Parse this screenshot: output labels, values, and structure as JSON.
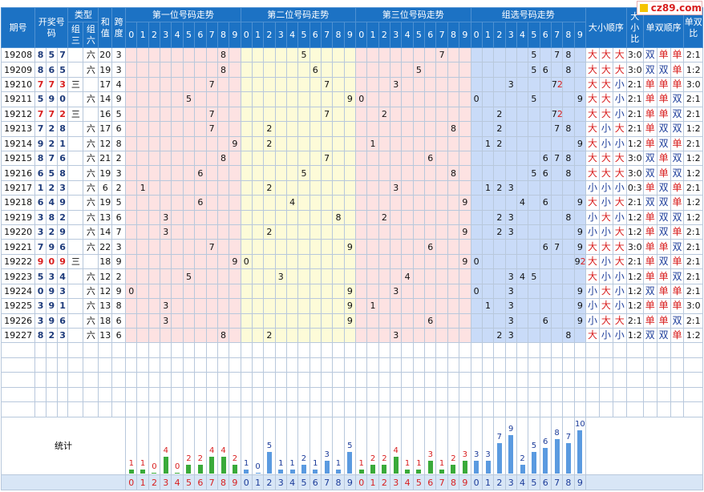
{
  "logo": "cz89.com",
  "header": {
    "qihao": "期号",
    "kaijiang": "开奖号码",
    "leixing": "类型",
    "zu3": "组三",
    "zu6": "组六",
    "hezhi": "和值",
    "kuadu": "跨度",
    "g1": "第一位号码走势",
    "g2": "第二位号码走势",
    "g3": "第三位号码走势",
    "g4": "组选号码走势",
    "daxiao": "大小顺序",
    "dxbi": "大小比",
    "danshuang": "单双顺序",
    "dsbi": "单双比",
    "digits": [
      "0",
      "1",
      "2",
      "3",
      "4",
      "5",
      "6",
      "7",
      "8",
      "9"
    ]
  },
  "rows": [
    {
      "q": "19208",
      "n": [
        "8",
        "5",
        "7"
      ],
      "red": false,
      "t3": "",
      "t6": "六",
      "hz": "20",
      "kd": "3",
      "dx": [
        "大",
        "大",
        "大"
      ],
      "dxb": "3:0",
      "ds": [
        "双",
        "单",
        "单"
      ],
      "dsb": "2:1"
    },
    {
      "q": "19209",
      "n": [
        "8",
        "6",
        "5"
      ],
      "red": false,
      "t3": "",
      "t6": "六",
      "hz": "19",
      "kd": "3",
      "dx": [
        "大",
        "大",
        "大"
      ],
      "dxb": "3:0",
      "ds": [
        "双",
        "双",
        "单"
      ],
      "dsb": "1:2"
    },
    {
      "q": "19210",
      "n": [
        "7",
        "7",
        "3"
      ],
      "red": true,
      "t3": "三",
      "t6": "",
      "hz": "17",
      "kd": "4",
      "dx": [
        "大",
        "大",
        "小"
      ],
      "dxb": "2:1",
      "ds": [
        "单",
        "单",
        "单"
      ],
      "dsb": "3:0"
    },
    {
      "q": "19211",
      "n": [
        "5",
        "9",
        "0"
      ],
      "red": false,
      "t3": "",
      "t6": "六",
      "hz": "14",
      "kd": "9",
      "dx": [
        "大",
        "大",
        "小"
      ],
      "dxb": "2:1",
      "ds": [
        "单",
        "单",
        "双"
      ],
      "dsb": "2:1"
    },
    {
      "q": "19212",
      "n": [
        "7",
        "7",
        "2"
      ],
      "red": true,
      "t3": "三",
      "t6": "",
      "hz": "16",
      "kd": "5",
      "dx": [
        "大",
        "大",
        "小"
      ],
      "dxb": "2:1",
      "ds": [
        "单",
        "单",
        "双"
      ],
      "dsb": "2:1"
    },
    {
      "q": "19213",
      "n": [
        "7",
        "2",
        "8"
      ],
      "red": false,
      "t3": "",
      "t6": "六",
      "hz": "17",
      "kd": "6",
      "dx": [
        "大",
        "小",
        "大"
      ],
      "dxb": "2:1",
      "ds": [
        "单",
        "双",
        "双"
      ],
      "dsb": "1:2"
    },
    {
      "q": "19214",
      "n": [
        "9",
        "2",
        "1"
      ],
      "red": false,
      "t3": "",
      "t6": "六",
      "hz": "12",
      "kd": "8",
      "dx": [
        "大",
        "小",
        "小"
      ],
      "dxb": "1:2",
      "ds": [
        "单",
        "双",
        "单"
      ],
      "dsb": "2:1"
    },
    {
      "q": "19215",
      "n": [
        "8",
        "7",
        "6"
      ],
      "red": false,
      "t3": "",
      "t6": "六",
      "hz": "21",
      "kd": "2",
      "dx": [
        "大",
        "大",
        "大"
      ],
      "dxb": "3:0",
      "ds": [
        "双",
        "单",
        "双"
      ],
      "dsb": "1:2"
    },
    {
      "q": "19216",
      "n": [
        "6",
        "5",
        "8"
      ],
      "red": false,
      "t3": "",
      "t6": "六",
      "hz": "19",
      "kd": "3",
      "dx": [
        "大",
        "大",
        "大"
      ],
      "dxb": "3:0",
      "ds": [
        "双",
        "单",
        "双"
      ],
      "dsb": "1:2"
    },
    {
      "q": "19217",
      "n": [
        "1",
        "2",
        "3"
      ],
      "red": false,
      "t3": "",
      "t6": "六",
      "hz": "6",
      "kd": "2",
      "dx": [
        "小",
        "小",
        "小"
      ],
      "dxb": "0:3",
      "ds": [
        "单",
        "双",
        "单"
      ],
      "dsb": "2:1"
    },
    {
      "q": "19218",
      "n": [
        "6",
        "4",
        "9"
      ],
      "red": false,
      "t3": "",
      "t6": "六",
      "hz": "19",
      "kd": "5",
      "dx": [
        "大",
        "小",
        "大"
      ],
      "dxb": "2:1",
      "ds": [
        "双",
        "双",
        "单"
      ],
      "dsb": "1:2"
    },
    {
      "q": "19219",
      "n": [
        "3",
        "8",
        "2"
      ],
      "red": false,
      "t3": "",
      "t6": "六",
      "hz": "13",
      "kd": "6",
      "dx": [
        "小",
        "大",
        "小"
      ],
      "dxb": "1:2",
      "ds": [
        "单",
        "双",
        "双"
      ],
      "dsb": "1:2"
    },
    {
      "q": "19220",
      "n": [
        "3",
        "2",
        "9"
      ],
      "red": false,
      "t3": "",
      "t6": "六",
      "hz": "14",
      "kd": "7",
      "dx": [
        "小",
        "小",
        "大"
      ],
      "dxb": "1:2",
      "ds": [
        "单",
        "双",
        "单"
      ],
      "dsb": "2:1"
    },
    {
      "q": "19221",
      "n": [
        "7",
        "9",
        "6"
      ],
      "red": false,
      "t3": "",
      "t6": "六",
      "hz": "22",
      "kd": "3",
      "dx": [
        "大",
        "大",
        "大"
      ],
      "dxb": "3:0",
      "ds": [
        "单",
        "单",
        "双"
      ],
      "dsb": "2:1"
    },
    {
      "q": "19222",
      "n": [
        "9",
        "0",
        "9"
      ],
      "red": true,
      "t3": "三",
      "t6": "",
      "hz": "18",
      "kd": "9",
      "dx": [
        "大",
        "小",
        "大"
      ],
      "dxb": "2:1",
      "ds": [
        "单",
        "双",
        "单"
      ],
      "dsb": "2:1"
    },
    {
      "q": "19223",
      "n": [
        "5",
        "3",
        "4"
      ],
      "red": false,
      "t3": "",
      "t6": "六",
      "hz": "12",
      "kd": "2",
      "dx": [
        "大",
        "小",
        "小"
      ],
      "dxb": "1:2",
      "ds": [
        "单",
        "单",
        "双"
      ],
      "dsb": "2:1"
    },
    {
      "q": "19224",
      "n": [
        "0",
        "9",
        "3"
      ],
      "red": false,
      "t3": "",
      "t6": "六",
      "hz": "12",
      "kd": "9",
      "dx": [
        "小",
        "大",
        "小"
      ],
      "dxb": "1:2",
      "ds": [
        "双",
        "单",
        "单"
      ],
      "dsb": "2:1"
    },
    {
      "q": "19225",
      "n": [
        "3",
        "9",
        "1"
      ],
      "red": false,
      "t3": "",
      "t6": "六",
      "hz": "13",
      "kd": "8",
      "dx": [
        "小",
        "大",
        "小"
      ],
      "dxb": "1:2",
      "ds": [
        "单",
        "单",
        "单"
      ],
      "dsb": "3:0"
    },
    {
      "q": "19226",
      "n": [
        "3",
        "9",
        "6"
      ],
      "red": false,
      "t3": "",
      "t6": "六",
      "hz": "18",
      "kd": "6",
      "dx": [
        "小",
        "大",
        "大"
      ],
      "dxb": "2:1",
      "ds": [
        "单",
        "单",
        "双"
      ],
      "dsb": "2:1"
    },
    {
      "q": "19227",
      "n": [
        "8",
        "2",
        "3"
      ],
      "red": false,
      "t3": "",
      "t6": "六",
      "hz": "13",
      "kd": "6",
      "dx": [
        "大",
        "小",
        "小"
      ],
      "dxb": "1:2",
      "ds": [
        "双",
        "双",
        "单"
      ],
      "dsb": "1:2"
    }
  ],
  "stat_label": "统计",
  "stats": {
    "g1": [
      1,
      1,
      0,
      4,
      0,
      2,
      2,
      4,
      4,
      2
    ],
    "g2": [
      1,
      0,
      5,
      1,
      1,
      2,
      1,
      3,
      1,
      5
    ],
    "g3": [
      1,
      2,
      2,
      4,
      1,
      1,
      3,
      1,
      2,
      3
    ],
    "g4": [
      3,
      3,
      7,
      9,
      2,
      5,
      6,
      8,
      7,
      10
    ]
  }
}
